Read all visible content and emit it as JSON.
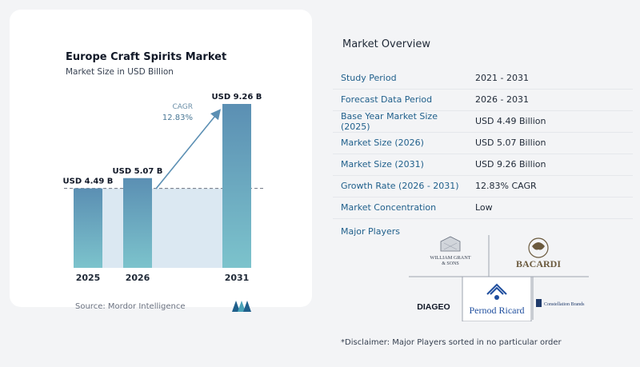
{
  "chart_data": {
    "type": "bar",
    "title": "Europe Craft Spirits Market",
    "subtitle": "Market Size in USD Billion",
    "categories": [
      "2025",
      "2026",
      "2031"
    ],
    "values": [
      4.49,
      5.07,
      9.26
    ],
    "data_labels": [
      "USD 4.49 B",
      "USD 5.07 B",
      "USD 9.26 B"
    ],
    "annotation": {
      "label": "CAGR",
      "value": "12.83%"
    },
    "colors": {
      "bar_top": "#5b8fb3",
      "bar_bottom": "#7cc3cc",
      "band": "#dbe8f2",
      "arrow": "#5b8fb3"
    }
  },
  "source": "Source: Mordor Intelligence",
  "overview": {
    "title": "Market Overview",
    "rows": [
      {
        "key": "Study Period",
        "value": "2021 - 2031"
      },
      {
        "key": "Forecast Data Period",
        "value": "2026 - 2031"
      },
      {
        "key": "Base Year Market Size (2025)",
        "value": "USD 4.49 Billion"
      },
      {
        "key": "Market Size (2026)",
        "value": "USD 5.07 Billion"
      },
      {
        "key": "Market Size (2031)",
        "value": "USD 9.26 Billion"
      },
      {
        "key": "Growth Rate (2026 - 2031)",
        "value": "12.83% CAGR"
      },
      {
        "key": "Market Concentration",
        "value": "Low"
      }
    ],
    "players_label": "Major Players",
    "players": [
      "WILLIAM GRANT & SONS",
      "BACARDI",
      "DIAGEO",
      "Pernod Ricard",
      "Constellation Brands"
    ],
    "disclaimer": "*Disclaimer: Major Players sorted in no particular order"
  }
}
